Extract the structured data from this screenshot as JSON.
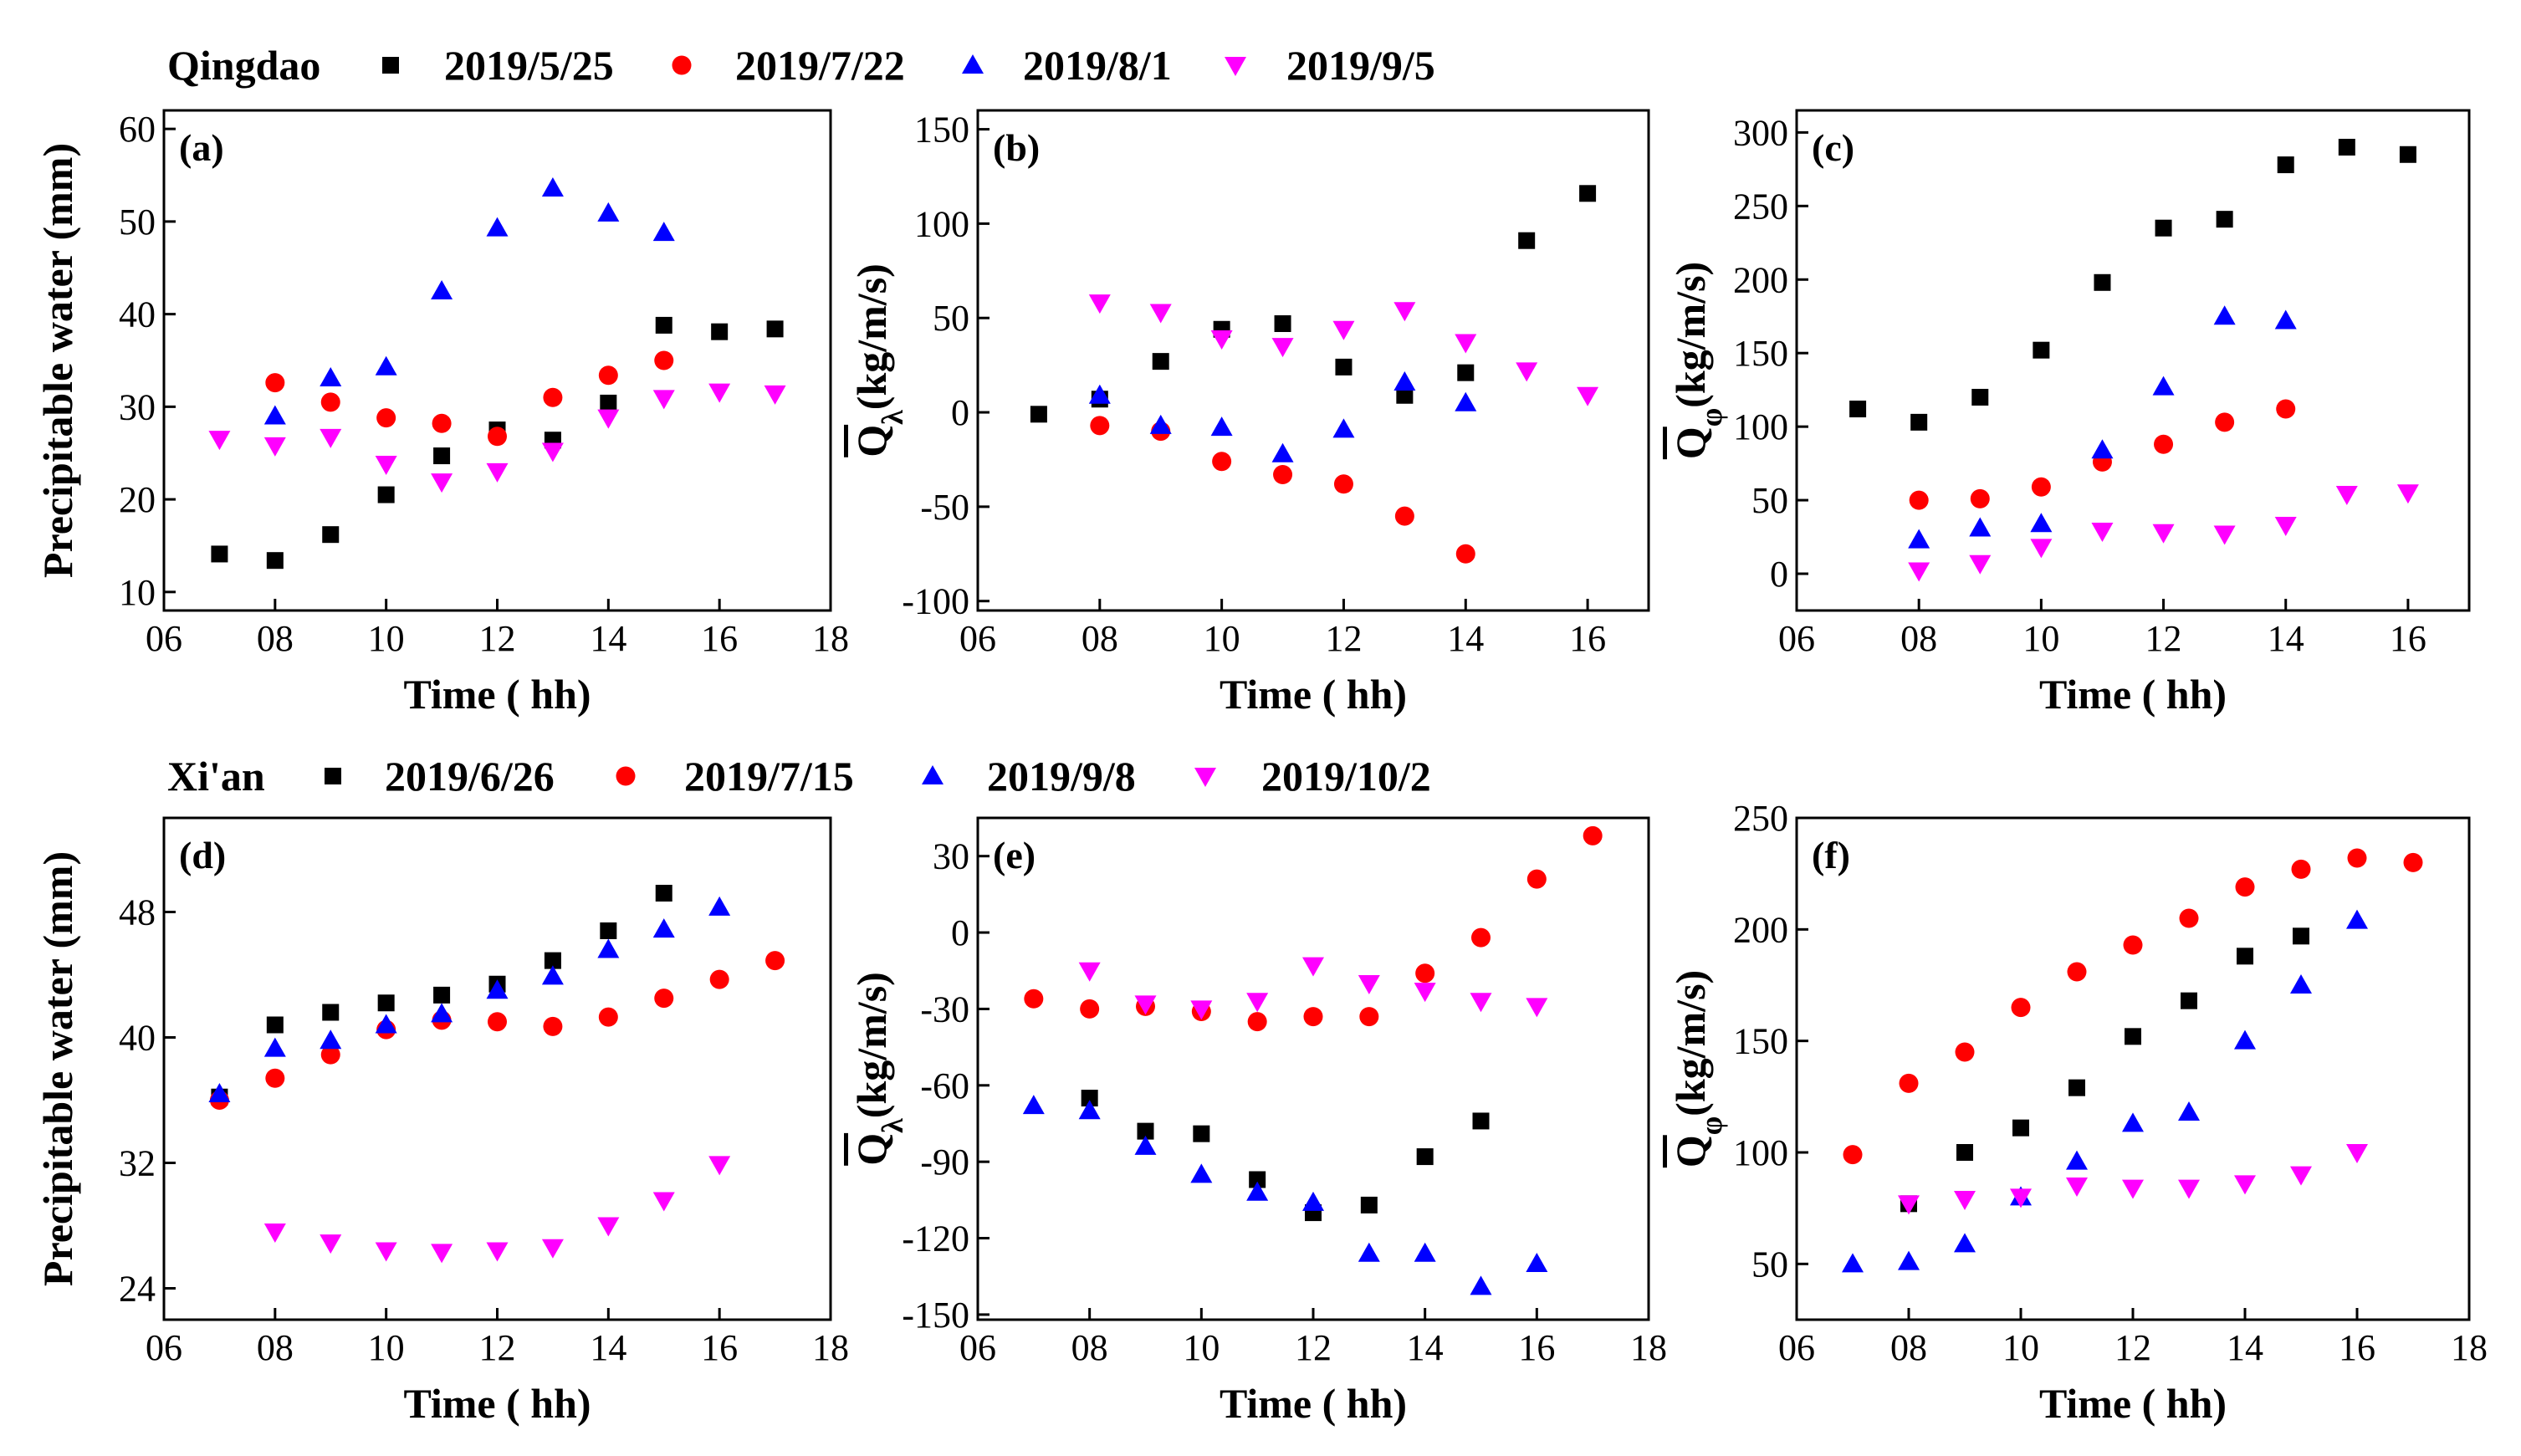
{
  "colors": {
    "black": "#000000",
    "red": "#ff0000",
    "blue": "#0000ff",
    "magenta": "#ff00ff"
  },
  "legends": [
    {
      "city": "Qingdao",
      "entries": [
        {
          "label": "2019/5/25",
          "marker": "square",
          "color": "#000000"
        },
        {
          "label": "2019/7/22",
          "marker": "circle",
          "color": "#ff0000"
        },
        {
          "label": "2019/8/1",
          "marker": "triangle-up",
          "color": "#0000ff"
        },
        {
          "label": "2019/9/5",
          "marker": "triangle-down",
          "color": "#ff00ff"
        }
      ]
    },
    {
      "city": "Xi'an",
      "entries": [
        {
          "label": "2019/6/26",
          "marker": "square",
          "color": "#000000"
        },
        {
          "label": "2019/7/15",
          "marker": "circle",
          "color": "#ff0000"
        },
        {
          "label": "2019/9/8",
          "marker": "triangle-up",
          "color": "#0000ff"
        },
        {
          "label": "2019/10/2",
          "marker": "triangle-down",
          "color": "#ff00ff"
        }
      ]
    }
  ],
  "chart_data": [
    {
      "type": "scatter",
      "panel": "(a)",
      "xlabel": "Time ( hh)",
      "ylabel": "Precipitable water (mm)",
      "xlim": [
        6,
        18
      ],
      "ylim": [
        8,
        62
      ],
      "xticks": [
        "06",
        "08",
        "10",
        "12",
        "14",
        "16",
        "18"
      ],
      "yticks": [
        "10",
        "20",
        "30",
        "40",
        "50",
        "60"
      ],
      "series": [
        {
          "name": "2019/5/25",
          "x": [
            7,
            8,
            9,
            10,
            11,
            12,
            13,
            14,
            15,
            16,
            17
          ],
          "y": [
            14.1,
            13.4,
            16.2,
            20.5,
            24.7,
            27.5,
            26.4,
            30.4,
            38.8,
            38.1,
            38.4
          ]
        },
        {
          "name": "2019/7/22",
          "x": [
            8,
            9,
            10,
            11,
            12,
            13,
            14,
            15
          ],
          "y": [
            32.6,
            30.5,
            28.8,
            28.2,
            26.8,
            31,
            33.4,
            35
          ]
        },
        {
          "name": "2019/8/1",
          "x": [
            8,
            9,
            10,
            11,
            12,
            13,
            14,
            15
          ],
          "y": [
            29,
            33.1,
            34.3,
            42.5,
            49.3,
            53.6,
            50.9,
            48.8
          ]
        },
        {
          "name": "2019/9/5",
          "x": [
            7,
            8,
            9,
            10,
            11,
            12,
            13,
            14,
            15,
            16,
            17
          ],
          "y": [
            26.5,
            25.8,
            26.7,
            23.8,
            21.9,
            23,
            25.2,
            28.8,
            30.9,
            31.6,
            31.4
          ]
        }
      ]
    },
    {
      "type": "scatter",
      "panel": "(b)",
      "xlabel": "Time ( hh)",
      "ylabel": "Q̄λ(kg/m/s)",
      "xlim": [
        6,
        17
      ],
      "ylim": [
        -105,
        160
      ],
      "xticks": [
        "06",
        "08",
        "10",
        "12",
        "14",
        "16"
      ],
      "yticks": [
        "150",
        "100",
        "50",
        "0",
        "-50",
        "-100"
      ],
      "series": [
        {
          "name": "2019/5/25",
          "x": [
            7,
            8,
            9,
            10,
            11,
            12,
            13,
            14,
            15,
            16
          ],
          "y": [
            -1,
            7,
            27,
            44,
            47,
            24,
            9,
            21,
            91,
            116
          ]
        },
        {
          "name": "2019/7/22",
          "x": [
            8,
            9,
            10,
            11,
            12,
            13,
            14
          ],
          "y": [
            -7,
            -10,
            -26,
            -33,
            -38,
            -55,
            -75
          ]
        },
        {
          "name": "2019/8/1",
          "x": [
            8,
            9,
            10,
            11,
            12,
            13,
            14
          ],
          "y": [
            9,
            -7,
            -8,
            -22,
            -9,
            16,
            5
          ]
        },
        {
          "name": "2019/9/5",
          "x": [
            8,
            9,
            10,
            11,
            12,
            13,
            14,
            15,
            16
          ],
          "y": [
            58,
            53,
            39,
            35,
            44,
            54,
            37,
            22,
            9
          ]
        }
      ]
    },
    {
      "type": "scatter",
      "panel": "(c)",
      "xlabel": "Time ( hh)",
      "ylabel": "Q̄φ(kg/m/s)",
      "xlim": [
        6,
        17
      ],
      "ylim": [
        -25,
        315
      ],
      "xticks": [
        "06",
        "08",
        "10",
        "12",
        "14",
        "16"
      ],
      "yticks": [
        "300",
        "250",
        "200",
        "150",
        "100",
        "50",
        "0"
      ],
      "series": [
        {
          "name": "2019/5/25",
          "x": [
            7,
            8,
            9,
            10,
            11,
            12,
            13,
            14,
            15,
            16
          ],
          "y": [
            112,
            103,
            120,
            152,
            198,
            235,
            241,
            278,
            290,
            285
          ]
        },
        {
          "name": "2019/7/22",
          "x": [
            8,
            9,
            10,
            11,
            12,
            13,
            14
          ],
          "y": [
            50,
            51,
            59,
            76,
            88,
            103,
            112
          ]
        },
        {
          "name": "2019/8/1",
          "x": [
            8,
            9,
            10,
            11,
            12,
            13,
            14
          ],
          "y": [
            23,
            31,
            34,
            84,
            127,
            175,
            172
          ]
        },
        {
          "name": "2019/9/5",
          "x": [
            8,
            9,
            10,
            11,
            12,
            13,
            14,
            15,
            16
          ],
          "y": [
            2,
            7,
            18,
            29,
            28,
            27,
            33,
            54,
            55
          ]
        }
      ]
    },
    {
      "type": "scatter",
      "panel": "(d)",
      "xlabel": "Time ( hh)",
      "ylabel": "Precipitable water (mm)",
      "xlim": [
        6,
        18
      ],
      "ylim": [
        22,
        54
      ],
      "xticks": [
        "06",
        "08",
        "10",
        "12",
        "14",
        "16",
        "18"
      ],
      "yticks": [
        "24",
        "32",
        "40",
        "48"
      ],
      "series": [
        {
          "name": "2019/6/26",
          "x": [
            7,
            8,
            9,
            10,
            11,
            12,
            13,
            14,
            15
          ],
          "y": [
            36.2,
            40.8,
            41.6,
            42.2,
            42.7,
            43.4,
            44.9,
            46.8,
            49.2
          ]
        },
        {
          "name": "2019/7/15",
          "x": [
            7,
            8,
            9,
            10,
            11,
            12,
            13,
            14,
            15,
            16,
            17
          ],
          "y": [
            36,
            37.4,
            38.9,
            40.5,
            41.1,
            41,
            40.7,
            41.3,
            42.5,
            43.7,
            44.9
          ]
        },
        {
          "name": "2019/9/8",
          "x": [
            7,
            8,
            9,
            10,
            11,
            12,
            13,
            14,
            15,
            16
          ],
          "y": [
            36.4,
            39.3,
            39.8,
            40.8,
            41.5,
            43,
            43.9,
            45.6,
            46.9,
            48.3
          ]
        },
        {
          "name": "2019/10/2",
          "x": [
            8,
            9,
            10,
            11,
            12,
            13,
            14,
            15,
            16
          ],
          "y": [
            27.6,
            26.9,
            26.4,
            26.3,
            26.4,
            26.6,
            28,
            29.6,
            31.9
          ]
        }
      ]
    },
    {
      "type": "scatter",
      "panel": "(e)",
      "xlabel": "Time ( hh)",
      "ylabel": "Q̄λ(kg/m/s)",
      "xlim": [
        6,
        18
      ],
      "ylim": [
        -152,
        45
      ],
      "xticks": [
        "06",
        "08",
        "10",
        "12",
        "14",
        "16",
        "18"
      ],
      "yticks": [
        "30",
        "0",
        "-30",
        "-60",
        "-90",
        "-120",
        "-150"
      ],
      "series": [
        {
          "name": "2019/6/26",
          "x": [
            8,
            9,
            10,
            11,
            12,
            13,
            14,
            15
          ],
          "y": [
            -65,
            -78,
            -79,
            -97,
            -110,
            -107,
            -88,
            -74
          ]
        },
        {
          "name": "2019/7/15",
          "x": [
            7,
            8,
            9,
            10,
            11,
            12,
            13,
            14,
            15,
            16,
            17
          ],
          "y": [
            -26,
            -30,
            -29,
            -31,
            -35,
            -33,
            -33,
            -16,
            -2,
            21,
            38
          ]
        },
        {
          "name": "2019/9/8",
          "x": [
            7,
            8,
            9,
            10,
            11,
            12,
            13,
            14,
            15,
            16
          ],
          "y": [
            -68,
            -70,
            -84,
            -95,
            -102,
            -106,
            -126,
            -126,
            -139,
            -130
          ]
        },
        {
          "name": "2019/10/2",
          "x": [
            8,
            9,
            10,
            11,
            12,
            13,
            14,
            15,
            16
          ],
          "y": [
            -15,
            -28,
            -30,
            -27,
            -13,
            -20,
            -23,
            -27,
            -29
          ]
        }
      ]
    },
    {
      "type": "scatter",
      "panel": "(f)",
      "xlabel": "Time ( hh)",
      "ylabel": "Q̄φ(kg/m/s)",
      "xlim": [
        6,
        18
      ],
      "ylim": [
        25,
        250
      ],
      "xticks": [
        "06",
        "08",
        "10",
        "12",
        "14",
        "16",
        "18"
      ],
      "yticks": [
        "250",
        "200",
        "150",
        "100",
        "50"
      ],
      "series": [
        {
          "name": "2019/6/26",
          "x": [
            8,
            9,
            10,
            11,
            12,
            13,
            14,
            15
          ],
          "y": [
            77,
            100,
            111,
            129,
            152,
            168,
            188,
            197
          ]
        },
        {
          "name": "2019/7/15",
          "x": [
            7,
            8,
            9,
            10,
            11,
            12,
            13,
            14,
            15,
            16,
            17
          ],
          "y": [
            99,
            131,
            145,
            165,
            181,
            193,
            205,
            219,
            227,
            232,
            230
          ]
        },
        {
          "name": "2019/9/8",
          "x": [
            7,
            8,
            9,
            10,
            11,
            12,
            13,
            14,
            15,
            16
          ],
          "y": [
            50,
            51,
            59,
            80,
            96,
            113,
            118,
            150,
            175,
            204
          ]
        },
        {
          "name": "2019/10/2",
          "x": [
            8,
            9,
            10,
            11,
            12,
            13,
            14,
            15,
            16
          ],
          "y": [
            77,
            79,
            80,
            85,
            84,
            84,
            86,
            90,
            100
          ]
        }
      ]
    }
  ]
}
